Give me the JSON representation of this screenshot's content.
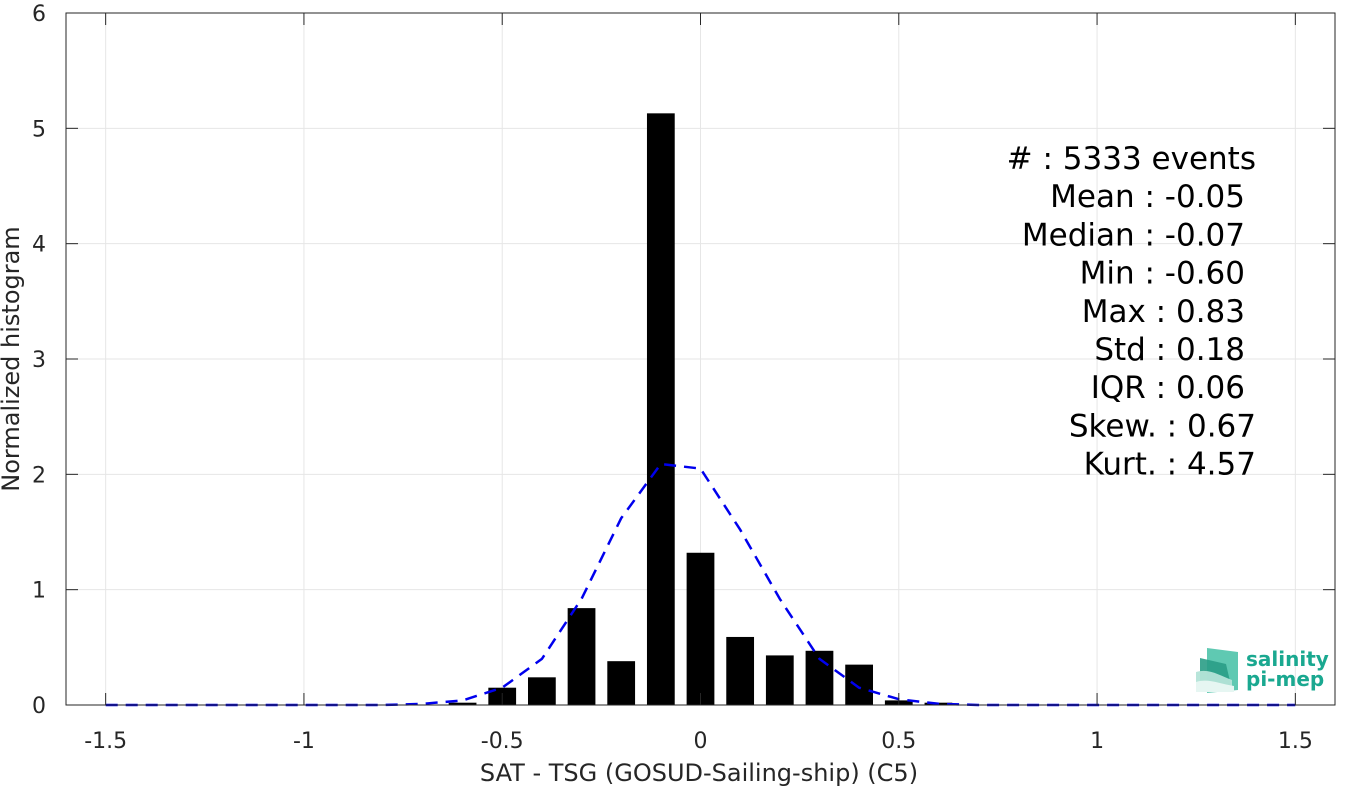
{
  "chart_data": {
    "type": "bar",
    "xlabel": "SAT - TSG (GOSUD-Sailing-ship) (C5)",
    "ylabel": "Normalized histogram",
    "xlim": [
      -1.6,
      1.6
    ],
    "ylim": [
      0,
      6
    ],
    "x_ticks": [
      -1.5,
      -1,
      -0.5,
      0,
      0.5,
      1,
      1.5
    ],
    "x_tick_labels": [
      "-1.5",
      "-1",
      "-0.5",
      "0",
      "0.5",
      "1",
      "1.5"
    ],
    "y_ticks": [
      0,
      1,
      2,
      3,
      4,
      5,
      6
    ],
    "y_tick_labels": [
      "0",
      "1",
      "2",
      "3",
      "4",
      "5",
      "6"
    ],
    "grid": true,
    "bar_width": 0.07,
    "bars": {
      "x": [
        -0.6,
        -0.5,
        -0.4,
        -0.3,
        -0.2,
        -0.1,
        0.0,
        0.1,
        0.2,
        0.3,
        0.4,
        0.5,
        0.6
      ],
      "values": [
        0.02,
        0.15,
        0.24,
        0.84,
        0.38,
        5.13,
        1.32,
        0.59,
        0.43,
        0.47,
        0.35,
        0.04,
        0.02
      ],
      "color": "#000000"
    },
    "fit_curve": {
      "style": "dashed",
      "color": "#0000ee",
      "x": [
        -1.5,
        -1.4,
        -1.3,
        -1.2,
        -1.1,
        -1.0,
        -0.9,
        -0.8,
        -0.7,
        -0.6,
        -0.5,
        -0.4,
        -0.3,
        -0.2,
        -0.1,
        0.0,
        0.1,
        0.2,
        0.3,
        0.4,
        0.5,
        0.6,
        0.7,
        0.8,
        0.9,
        1.0,
        1.1,
        1.2,
        1.3,
        1.4,
        1.5
      ],
      "y": [
        0,
        0,
        0,
        0,
        0,
        0,
        0,
        0,
        0.01,
        0.04,
        0.15,
        0.4,
        0.92,
        1.62,
        2.09,
        2.05,
        1.52,
        0.92,
        0.4,
        0.15,
        0.05,
        0.01,
        0,
        0,
        0,
        0,
        0,
        0,
        0,
        0,
        0
      ]
    },
    "annotations": [
      "#  : 5333 events",
      "Mean : -0.05",
      "Median : -0.07",
      "Min : -0.60",
      "Max : 0.83",
      "Std : 0.18",
      "IQR : 0.06",
      "Skew. : 0.67",
      "Kurt. : 4.57"
    ]
  },
  "logo": {
    "line1": "salinity",
    "line2": "pi-mep",
    "color": "#1aa890"
  }
}
